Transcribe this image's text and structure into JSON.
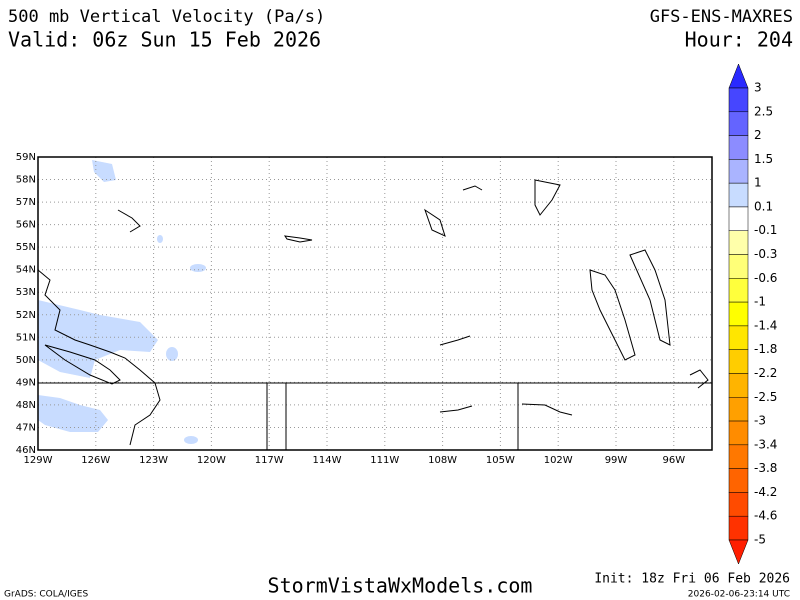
{
  "header": {
    "title": "500 mb Vertical Velocity (Pa/s)",
    "valid": "Valid: 06z Sun 15 Feb 2026",
    "model": "GFS-ENS-MAXRES",
    "hour": "Hour: 204"
  },
  "map": {
    "lat_labels": [
      "59N",
      "58N",
      "57N",
      "56N",
      "55N",
      "54N",
      "53N",
      "52N",
      "51N",
      "50N",
      "49N",
      "48N",
      "47N",
      "46N"
    ],
    "lon_labels": [
      "129W",
      "126W",
      "123W",
      "120W",
      "117W",
      "114W",
      "111W",
      "108W",
      "105W",
      "102W",
      "99W",
      "96W"
    ]
  },
  "colorbar": {
    "labels": [
      "3",
      "2.5",
      "2",
      "1.5",
      "1",
      "0.1",
      "-0.1",
      "-0.3",
      "-0.6",
      "-1",
      "-1.4",
      "-1.8",
      "-2.2",
      "-2.5",
      "-3",
      "-3.4",
      "-3.8",
      "-4.2",
      "-4.6",
      "-5"
    ],
    "colors": [
      "#2a2aff",
      "#4646ff",
      "#6464ff",
      "#8c8cff",
      "#aab4ff",
      "#c8dcff",
      "#ffffff",
      "#ffffaa",
      "#ffff78",
      "#ffff3c",
      "#ffff00",
      "#ffe600",
      "#ffcd00",
      "#ffb400",
      "#ffa000",
      "#ff8c00",
      "#ff7800",
      "#ff6400",
      "#ff4b00",
      "#ff3200",
      "#ff1e00"
    ]
  },
  "footer": {
    "credit": "GrADS: COLA/IGES",
    "site": "StormVistaWxModels.com",
    "init": "Init: 18z Fri 06 Feb 2026",
    "timestamp": "2026-02-06-23:14 UTC"
  }
}
